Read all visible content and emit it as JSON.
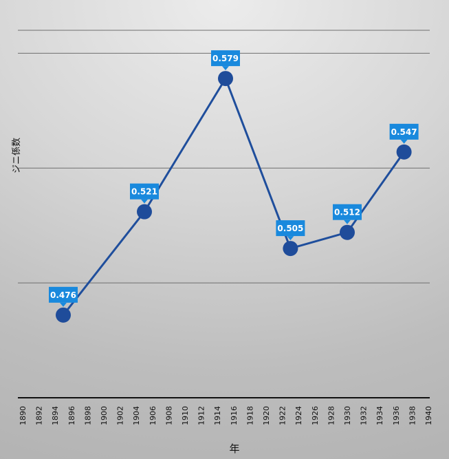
{
  "chart_data": {
    "type": "line",
    "title": "",
    "xlabel": "年",
    "ylabel": "ジニ係数",
    "x_ticks": [
      "1890",
      "1892",
      "1894",
      "1896",
      "1898",
      "1900",
      "1902",
      "1904",
      "1906",
      "1908",
      "1910",
      "1912",
      "1914",
      "1916",
      "1918",
      "1920",
      "1922",
      "1924",
      "1926",
      "1928",
      "1930",
      "1932",
      "1934",
      "1936",
      "1938",
      "1940"
    ],
    "xlim": [
      1890,
      1940
    ],
    "ylim": [
      0.44,
      0.6
    ],
    "grid": "horizontal",
    "y_gridlines": [
      0.49,
      0.54,
      0.59
    ],
    "series": [
      {
        "x": [
          1895,
          1905,
          1915,
          1923,
          1930,
          1937
        ],
        "values": [
          0.476,
          0.521,
          0.579,
          0.505,
          0.512,
          0.547
        ],
        "labels": [
          "0.476",
          "0.521",
          "0.579",
          "0.505",
          "0.512",
          "0.547"
        ]
      }
    ],
    "colors": {
      "line": "#1f4e9c",
      "marker": "#1f4c9a",
      "label_bg": "#1989dd",
      "gridline": "#6e6e6e",
      "axis": "#111111"
    }
  }
}
